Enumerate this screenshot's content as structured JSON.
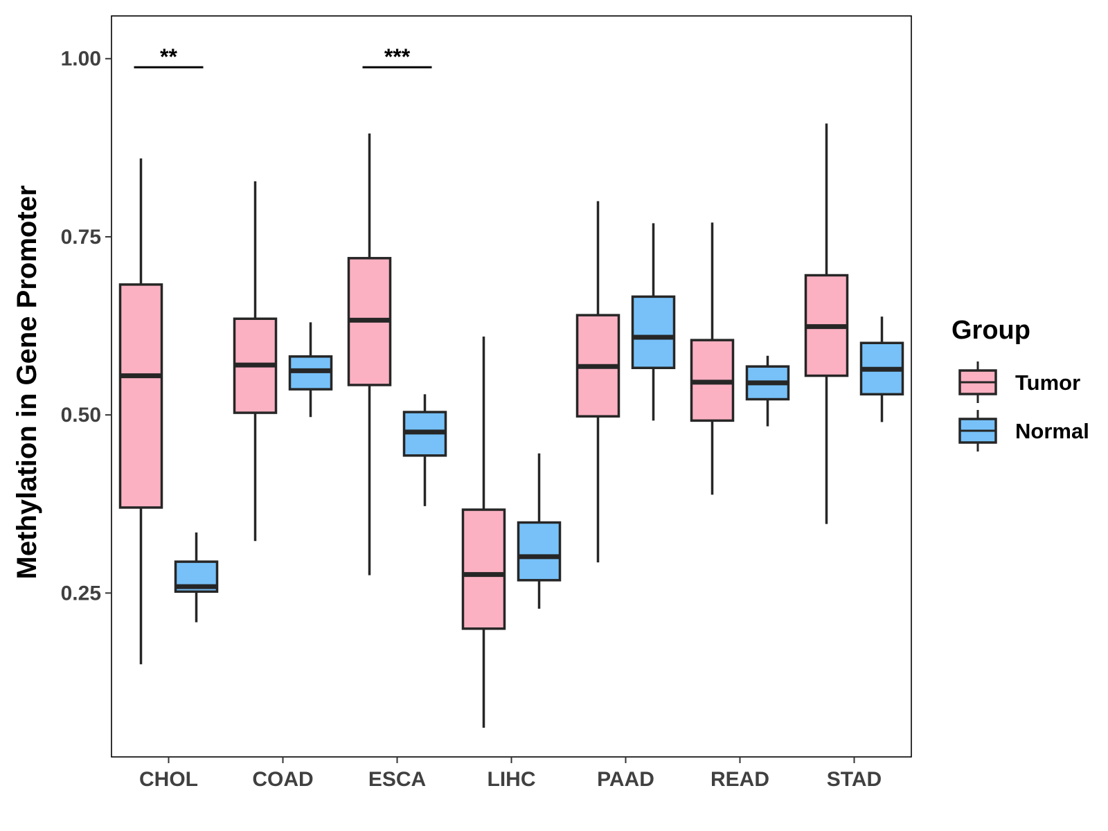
{
  "chart_data": {
    "type": "boxplot",
    "title": "",
    "xlabel": "",
    "ylabel": "Methylation in Gene Promoter",
    "ylim": [
      0.02,
      1.06
    ],
    "yticks": [
      0.25,
      0.5,
      0.75,
      1.0
    ],
    "ytick_labels": [
      "0.25",
      "0.50",
      "0.75",
      "1.00"
    ],
    "grid": false,
    "categories": [
      "CHOL",
      "COAD",
      "ESCA",
      "LIHC",
      "PAAD",
      "READ",
      "STAD"
    ],
    "legend": {
      "title": "Group",
      "position": "right",
      "entries": [
        {
          "name": "Tumor",
          "color": "#FBB1C2"
        },
        {
          "name": "Normal",
          "color": "#77C1F8"
        }
      ]
    },
    "series": [
      {
        "name": "Tumor",
        "color": "#FBB1C2",
        "boxes": [
          {
            "category": "CHOL",
            "whisker_low": 0.15,
            "q1": 0.37,
            "median": 0.555,
            "q3": 0.683,
            "whisker_high": 0.86
          },
          {
            "category": "COAD",
            "whisker_low": 0.323,
            "q1": 0.503,
            "median": 0.57,
            "q3": 0.635,
            "whisker_high": 0.828
          },
          {
            "category": "ESCA",
            "whisker_low": 0.275,
            "q1": 0.542,
            "median": 0.633,
            "q3": 0.72,
            "whisker_high": 0.895
          },
          {
            "category": "LIHC",
            "whisker_low": 0.061,
            "q1": 0.2,
            "median": 0.276,
            "q3": 0.367,
            "whisker_high": 0.61
          },
          {
            "category": "PAAD",
            "whisker_low": 0.293,
            "q1": 0.498,
            "median": 0.568,
            "q3": 0.64,
            "whisker_high": 0.8
          },
          {
            "category": "READ",
            "whisker_low": 0.388,
            "q1": 0.492,
            "median": 0.546,
            "q3": 0.605,
            "whisker_high": 0.77
          },
          {
            "category": "STAD",
            "whisker_low": 0.347,
            "q1": 0.555,
            "median": 0.624,
            "q3": 0.696,
            "whisker_high": 0.909
          }
        ]
      },
      {
        "name": "Normal",
        "color": "#77C1F8",
        "boxes": [
          {
            "category": "CHOL",
            "whisker_low": 0.209,
            "q1": 0.252,
            "median": 0.259,
            "q3": 0.294,
            "whisker_high": 0.335
          },
          {
            "category": "COAD",
            "whisker_low": 0.497,
            "q1": 0.536,
            "median": 0.562,
            "q3": 0.582,
            "whisker_high": 0.63
          },
          {
            "category": "ESCA",
            "whisker_low": 0.372,
            "q1": 0.443,
            "median": 0.476,
            "q3": 0.504,
            "whisker_high": 0.529
          },
          {
            "category": "LIHC",
            "whisker_low": 0.228,
            "q1": 0.268,
            "median": 0.301,
            "q3": 0.349,
            "whisker_high": 0.446
          },
          {
            "category": "PAAD",
            "whisker_low": 0.492,
            "q1": 0.566,
            "median": 0.609,
            "q3": 0.666,
            "whisker_high": 0.769
          },
          {
            "category": "READ",
            "whisker_low": 0.484,
            "q1": 0.522,
            "median": 0.545,
            "q3": 0.568,
            "whisker_high": 0.583
          },
          {
            "category": "STAD",
            "whisker_low": 0.49,
            "q1": 0.529,
            "median": 0.564,
            "q3": 0.601,
            "whisker_high": 0.638
          }
        ]
      }
    ],
    "annotations": [
      {
        "category": "CHOL",
        "label": "**",
        "y": 0.988
      },
      {
        "category": "ESCA",
        "label": "***",
        "y": 0.988
      }
    ]
  }
}
